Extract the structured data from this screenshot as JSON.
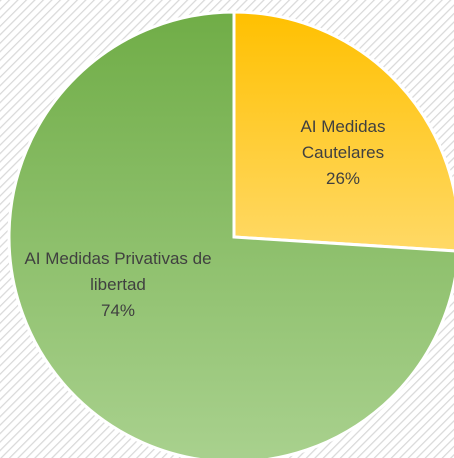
{
  "chart_data": {
    "type": "pie",
    "categories": [
      "AI Medidas Cautelares",
      "AI Medidas Privativas de libertad"
    ],
    "values": [
      26,
      74
    ],
    "value_labels": [
      "26%",
      "74%"
    ],
    "colors": [
      [
        "#ffc000",
        "#ffd966"
      ],
      [
        "#70ad47",
        "#a9d18e"
      ]
    ]
  }
}
